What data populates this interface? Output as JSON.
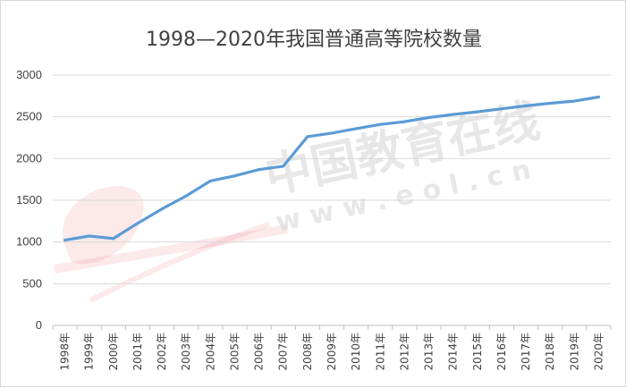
{
  "chart_data": {
    "type": "line",
    "title": "1998—2020年我国普通高等院校数量",
    "xlabel": "",
    "ylabel": "",
    "categories": [
      "1998年",
      "1999年",
      "2000年",
      "2001年",
      "2002年",
      "2003年",
      "2004年",
      "2005年",
      "2006年",
      "2007年",
      "2008年",
      "2009年",
      "2010年",
      "2011年",
      "2012年",
      "2013年",
      "2014年",
      "2015年",
      "2016年",
      "2017年",
      "2018年",
      "2019年",
      "2020年"
    ],
    "series": [
      {
        "values": [
          1022,
          1071,
          1041,
          1225,
          1396,
          1552,
          1731,
          1792,
          1867,
          1908,
          2263,
          2305,
          2358,
          2409,
          2442,
          2491,
          2529,
          2560,
          2596,
          2631,
          2663,
          2688,
          2738
        ]
      }
    ],
    "ylim": [
      0,
      3000
    ],
    "yticks": [
      0,
      500,
      1000,
      1500,
      2000,
      2500,
      3000
    ],
    "grid": true,
    "line_color": "#5b9bd5",
    "watermark": {
      "text_cn": "中国教育在线",
      "text_url": "w w w . e o l . c n",
      "color": "#c8c8c8",
      "accent": "#e8474f"
    }
  }
}
